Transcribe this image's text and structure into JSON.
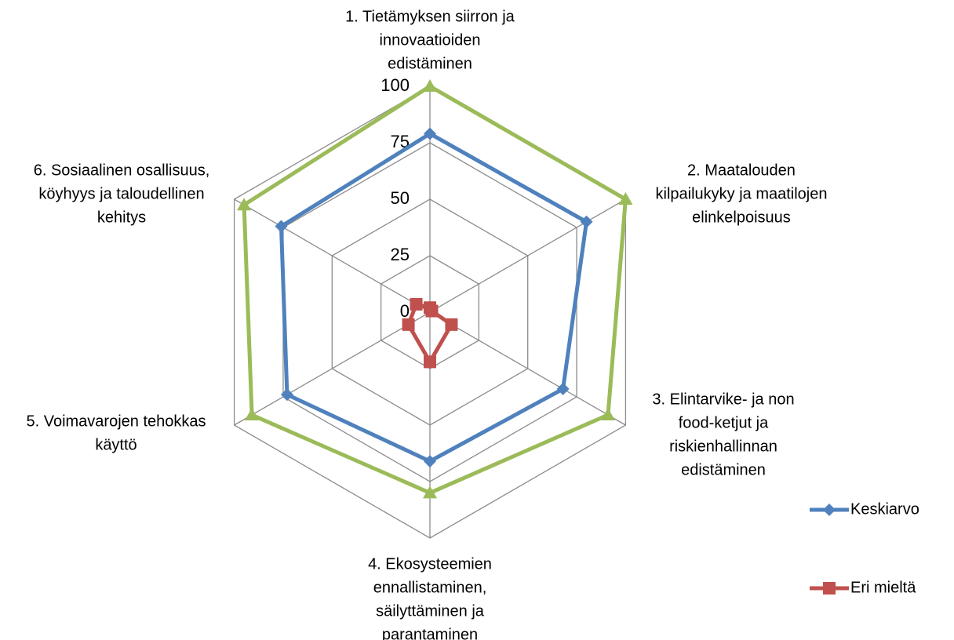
{
  "chart_data": {
    "type": "radar",
    "categories": [
      [
        "1. Tietämyksen siirron ja",
        "innovaatioiden",
        "edistäminen"
      ],
      [
        "2. Maatalouden",
        "kilpailukyky ja maatilojen",
        "elinkelpoisuus"
      ],
      [
        "3. Elintarvike- ja non",
        "food-ketjut  ja",
        "riskienhallinnan",
        "edistäminen"
      ],
      [
        "4. Ekosysteemien",
        "ennallistaminen,",
        "säilyttäminen ja",
        "parantaminen"
      ],
      [
        "5. Voimavarojen tehokkas",
        "käyttö"
      ],
      [
        "6. Sosiaalinen osallisuus,",
        "köyhyys ja taloudellinen",
        "kehitys"
      ]
    ],
    "series": [
      {
        "color": "#9bbb59",
        "marker": "triangle",
        "values": [
          100,
          100,
          91,
          80,
          91,
          95
        ]
      },
      {
        "name": "Keskiarvo",
        "color": "#4f81bd",
        "marker": "diamond",
        "values": [
          79,
          80,
          68,
          66,
          73,
          76
        ]
      },
      {
        "name": "Eri mieltä",
        "color": "#c0504d",
        "marker": "square",
        "values": [
          2,
          1,
          11,
          22,
          11,
          7
        ]
      }
    ],
    "ylim": [
      0,
      100
    ],
    "yticks": [
      0,
      25,
      50,
      75,
      100
    ],
    "grid": true,
    "legend": "right"
  }
}
